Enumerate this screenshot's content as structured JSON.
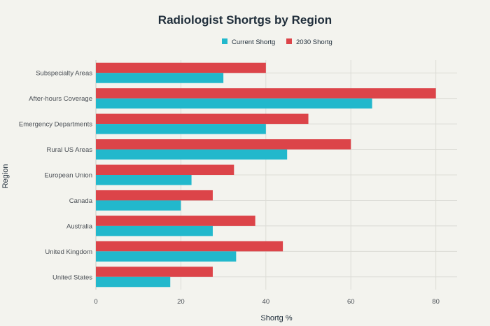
{
  "chart_data": {
    "type": "bar",
    "orientation": "horizontal",
    "title": "Radiologist Shortgs by Region",
    "xlabel": "Shortg %",
    "ylabel": "Region",
    "xlim": [
      0,
      85
    ],
    "xticks": [
      0,
      20,
      40,
      60,
      80
    ],
    "grid": true,
    "legend_position": "top-center",
    "categories": [
      "Subspecialty Areas",
      "After-hours Coverage",
      "Emergency Departments",
      "Rural US Areas",
      "European Union",
      "Canada",
      "Australia",
      "United Kingdom",
      "United States"
    ],
    "series": [
      {
        "name": "Current Shortg",
        "color": "#22b8cc",
        "values": [
          30,
          65,
          40,
          45,
          22.5,
          20,
          27.5,
          33,
          17.5
        ]
      },
      {
        "name": "2030 Shortg",
        "color": "#dc4449",
        "values": [
          40,
          80,
          50,
          60,
          32.5,
          27.5,
          37.5,
          44,
          27.5
        ]
      }
    ]
  }
}
